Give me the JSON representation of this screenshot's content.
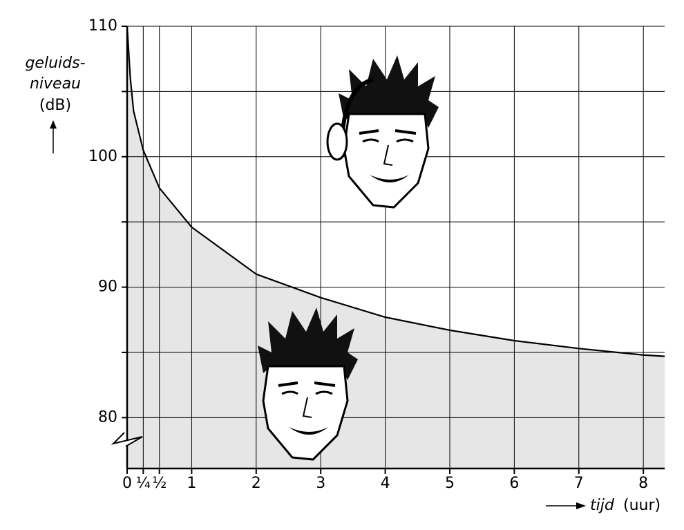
{
  "chart_data": {
    "type": "area",
    "ylabel": [
      "geluids-",
      "niveau"
    ],
    "yunit": "(dB)",
    "xlabel": "tijd",
    "xunit": "(uur)",
    "x": [
      0,
      0.05,
      0.1,
      0.25,
      0.5,
      1,
      2,
      3,
      4,
      5,
      6,
      7,
      8,
      8.33
    ],
    "values": [
      110,
      106,
      103.5,
      100.5,
      97.6,
      94.6,
      91,
      89.2,
      87.7,
      86.7,
      85.9,
      85.3,
      84.8,
      84.7
    ],
    "color": "#000000",
    "fill_color": "#e6e6e6",
    "xlim": [
      0,
      8.33
    ],
    "ylim": [
      76.1,
      110
    ],
    "xticks": [
      0,
      {
        "value": 0.25,
        "label": "¼"
      },
      {
        "value": 0.5,
        "label": "½"
      },
      1,
      2,
      3,
      4,
      5,
      6,
      7,
      8
    ],
    "yticks": [
      80,
      90,
      100,
      110
    ],
    "minor_yticks": [
      85,
      95,
      105
    ],
    "grid": true
  }
}
